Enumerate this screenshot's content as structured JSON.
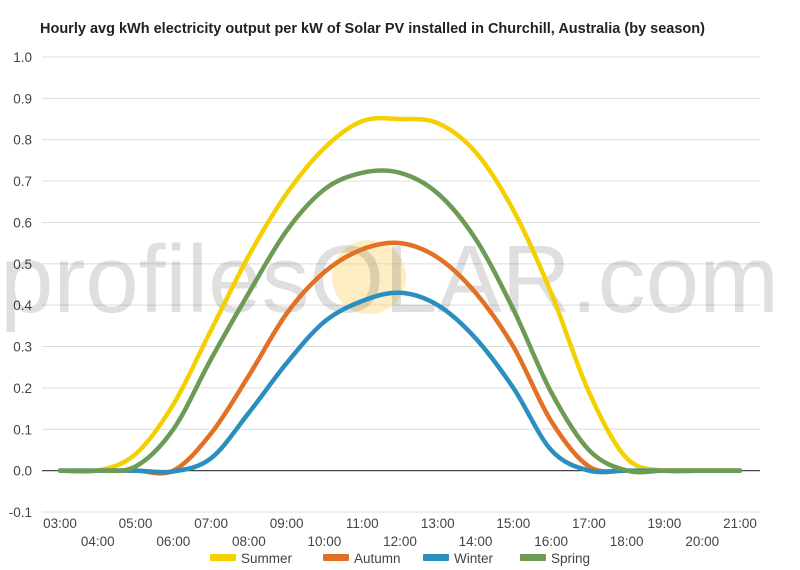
{
  "chart_data": {
    "type": "line",
    "title": "Hourly avg kWh electricity output per kW of Solar PV installed in Churchill, Australia (by season)",
    "xlabel": "",
    "ylabel": "",
    "ylim": [
      -0.1,
      1.0
    ],
    "yticks": [
      "-0.1",
      "0.0",
      "0.1",
      "0.2",
      "0.3",
      "0.4",
      "0.5",
      "0.6",
      "0.7",
      "0.8",
      "0.9",
      "1.0"
    ],
    "x": [
      "03:00",
      "04:00",
      "05:00",
      "06:00",
      "07:00",
      "08:00",
      "09:00",
      "10:00",
      "11:00",
      "12:00",
      "13:00",
      "14:00",
      "15:00",
      "16:00",
      "17:00",
      "18:00",
      "19:00",
      "20:00",
      "21:00"
    ],
    "grid": true,
    "legend_position": "bottom",
    "series": [
      {
        "name": "Summer",
        "color": "#f5d000",
        "values": [
          0.0,
          0.0,
          0.04,
          0.16,
          0.34,
          0.52,
          0.67,
          0.78,
          0.845,
          0.85,
          0.84,
          0.77,
          0.63,
          0.43,
          0.19,
          0.03,
          0.0,
          0.0,
          0.0
        ]
      },
      {
        "name": "Autumn",
        "color": "#e27025",
        "values": [
          0.0,
          0.0,
          0.0,
          0.0,
          0.09,
          0.23,
          0.38,
          0.48,
          0.535,
          0.55,
          0.515,
          0.43,
          0.3,
          0.12,
          0.01,
          0.0,
          0.0,
          0.0,
          0.0
        ]
      },
      {
        "name": "Winter",
        "color": "#2a8fbf",
        "values": [
          0.0,
          0.0,
          0.0,
          -0.002,
          0.03,
          0.14,
          0.26,
          0.36,
          0.41,
          0.43,
          0.4,
          0.32,
          0.2,
          0.05,
          0.0,
          0.0,
          0.0,
          0.0,
          0.0
        ]
      },
      {
        "name": "Spring",
        "color": "#6b9b54",
        "values": [
          0.0,
          0.0,
          0.01,
          0.1,
          0.27,
          0.43,
          0.58,
          0.68,
          0.72,
          0.72,
          0.67,
          0.56,
          0.39,
          0.19,
          0.05,
          0.0,
          0.0,
          0.0,
          0.0
        ]
      }
    ]
  },
  "watermark": {
    "part1": "profilesO",
    "part2": "LAR.com",
    "sun_color": "#f9d77a"
  }
}
